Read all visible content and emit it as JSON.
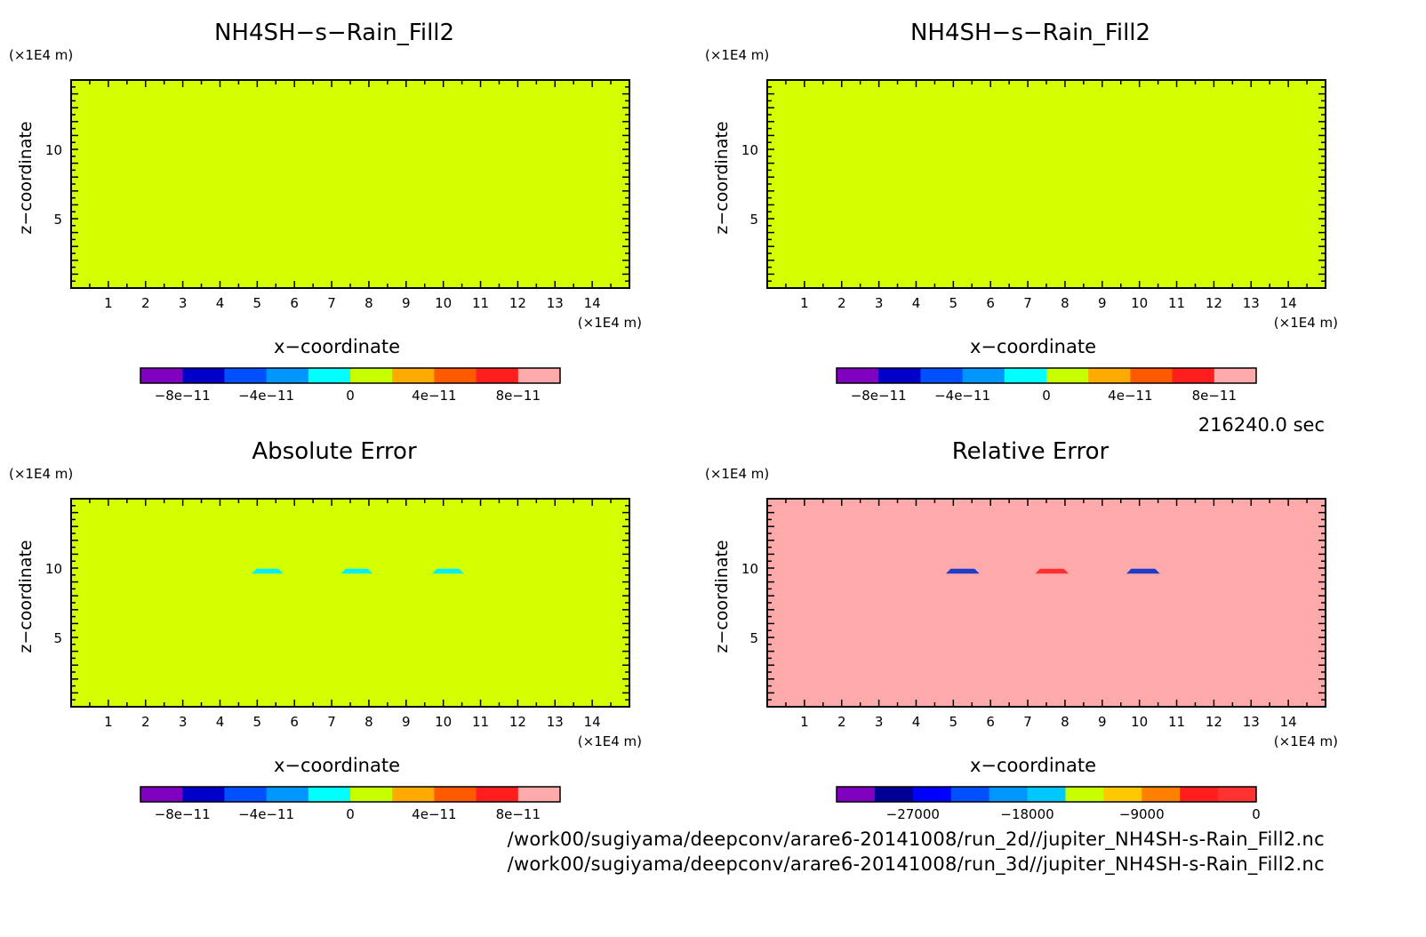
{
  "figure": {
    "time_label": "216240.0 sec",
    "file_paths": [
      "/work00/sugiyama/deepconv/arare6-20141008/run_2d//jupiter_NH4SH-s-Rain_Fill2.nc",
      "/work00/sugiyama/deepconv/arare6-20141008/run_3d//jupiter_NH4SH-s-Rain_Fill2.nc"
    ]
  },
  "chart_data": [
    {
      "type": "heatmap",
      "title": "NH4SH−s−Rain_Fill2",
      "xlabel": "x−coordinate",
      "ylabel": "z−coordinate",
      "x_unit": "(×1E4 m)",
      "y_unit": "(×1E4 m)",
      "xlim": [
        0,
        15
      ],
      "ylim": [
        0,
        15
      ],
      "x_ticks": [
        1,
        2,
        3,
        4,
        5,
        6,
        7,
        8,
        9,
        10,
        11,
        12,
        13,
        14
      ],
      "y_ticks": [
        5,
        10
      ],
      "background_color": "#d4ff00",
      "features": [],
      "colorbar": {
        "colors": [
          "#8000c0",
          "#0000c8",
          "#0050ff",
          "#0096ff",
          "#00ffff",
          "#c8ff00",
          "#ffaa00",
          "#ff5a00",
          "#ff1e1e",
          "#ffaaaa"
        ],
        "ticks": [
          {
            "value": -8e-11,
            "label": "−8e−11"
          },
          {
            "value": -4e-11,
            "label": "−4e−11"
          },
          {
            "value": 0,
            "label": "0"
          },
          {
            "value": 4e-11,
            "label": "4e−11"
          },
          {
            "value": 8e-11,
            "label": "8e−11"
          }
        ],
        "min": -1e-10,
        "max": 1e-10
      }
    },
    {
      "type": "heatmap",
      "title": "NH4SH−s−Rain_Fill2",
      "xlabel": "x−coordinate",
      "ylabel": "z−coordinate",
      "x_unit": "(×1E4 m)",
      "y_unit": "(×1E4 m)",
      "xlim": [
        0,
        15
      ],
      "ylim": [
        0,
        15
      ],
      "x_ticks": [
        1,
        2,
        3,
        4,
        5,
        6,
        7,
        8,
        9,
        10,
        11,
        12,
        13,
        14
      ],
      "y_ticks": [
        5,
        10
      ],
      "background_color": "#d4ff00",
      "features": [],
      "colorbar": {
        "colors": [
          "#8000c0",
          "#0000c8",
          "#0050ff",
          "#0096ff",
          "#00ffff",
          "#c8ff00",
          "#ffaa00",
          "#ff5a00",
          "#ff1e1e",
          "#ffaaaa"
        ],
        "ticks": [
          {
            "value": -8e-11,
            "label": "−8e−11"
          },
          {
            "value": -4e-11,
            "label": "−4e−11"
          },
          {
            "value": 0,
            "label": "0"
          },
          {
            "value": 4e-11,
            "label": "4e−11"
          },
          {
            "value": 8e-11,
            "label": "8e−11"
          }
        ],
        "min": -1e-10,
        "max": 1e-10
      }
    },
    {
      "type": "heatmap",
      "title": "Absolute Error",
      "xlabel": "x−coordinate",
      "ylabel": "z−coordinate",
      "x_unit": "(×1E4 m)",
      "y_unit": "(×1E4 m)",
      "xlim": [
        0,
        15
      ],
      "ylim": [
        0,
        15
      ],
      "x_ticks": [
        1,
        2,
        3,
        4,
        5,
        6,
        7,
        8,
        9,
        10,
        11,
        12,
        13,
        14
      ],
      "y_ticks": [
        5,
        10
      ],
      "background_color": "#d4ff00",
      "features": [
        {
          "x": 4.85,
          "z": 9.6,
          "w": 0.85,
          "h": 0.35,
          "color": "#00f0ff"
        },
        {
          "x": 7.25,
          "z": 9.6,
          "w": 0.85,
          "h": 0.35,
          "color": "#00f0ff"
        },
        {
          "x": 9.7,
          "z": 9.6,
          "w": 0.85,
          "h": 0.35,
          "color": "#00f0ff"
        }
      ],
      "colorbar": {
        "colors": [
          "#8000c0",
          "#0000c8",
          "#0050ff",
          "#0096ff",
          "#00ffff",
          "#c8ff00",
          "#ffaa00",
          "#ff5a00",
          "#ff1e1e",
          "#ffaaaa"
        ],
        "ticks": [
          {
            "value": -8e-11,
            "label": "−8e−11"
          },
          {
            "value": -4e-11,
            "label": "−4e−11"
          },
          {
            "value": 0,
            "label": "0"
          },
          {
            "value": 4e-11,
            "label": "4e−11"
          },
          {
            "value": 8e-11,
            "label": "8e−11"
          }
        ],
        "min": -1e-10,
        "max": 1e-10
      }
    },
    {
      "type": "heatmap",
      "title": "Relative Error",
      "xlabel": "x−coordinate",
      "ylabel": "z−coordinate",
      "x_unit": "(×1E4 m)",
      "y_unit": "(×1E4 m)",
      "xlim": [
        0,
        15
      ],
      "ylim": [
        0,
        15
      ],
      "x_ticks": [
        1,
        2,
        3,
        4,
        5,
        6,
        7,
        8,
        9,
        10,
        11,
        12,
        13,
        14
      ],
      "y_ticks": [
        5,
        10
      ],
      "background_color": "#ffaaaa",
      "features": [
        {
          "x": 4.8,
          "z": 9.6,
          "w": 0.9,
          "h": 0.35,
          "color": "#1e3cc8"
        },
        {
          "x": 7.2,
          "z": 9.6,
          "w": 0.9,
          "h": 0.35,
          "color": "#ff3030"
        },
        {
          "x": 9.65,
          "z": 9.6,
          "w": 0.9,
          "h": 0.35,
          "color": "#1e3cc8"
        }
      ],
      "colorbar": {
        "colors": [
          "#8000c0",
          "#000096",
          "#0000ff",
          "#0050ff",
          "#0096ff",
          "#00c8ff",
          "#c8ff00",
          "#ffc800",
          "#ff8000",
          "#ff1e1e",
          "#ff3232"
        ],
        "ticks": [
          {
            "value": -27000,
            "label": "−27000"
          },
          {
            "value": -18000,
            "label": "−18000"
          },
          {
            "value": -9000,
            "label": "−9000"
          },
          {
            "value": 0,
            "label": "0"
          }
        ],
        "min": -33000,
        "max": 0
      }
    }
  ]
}
